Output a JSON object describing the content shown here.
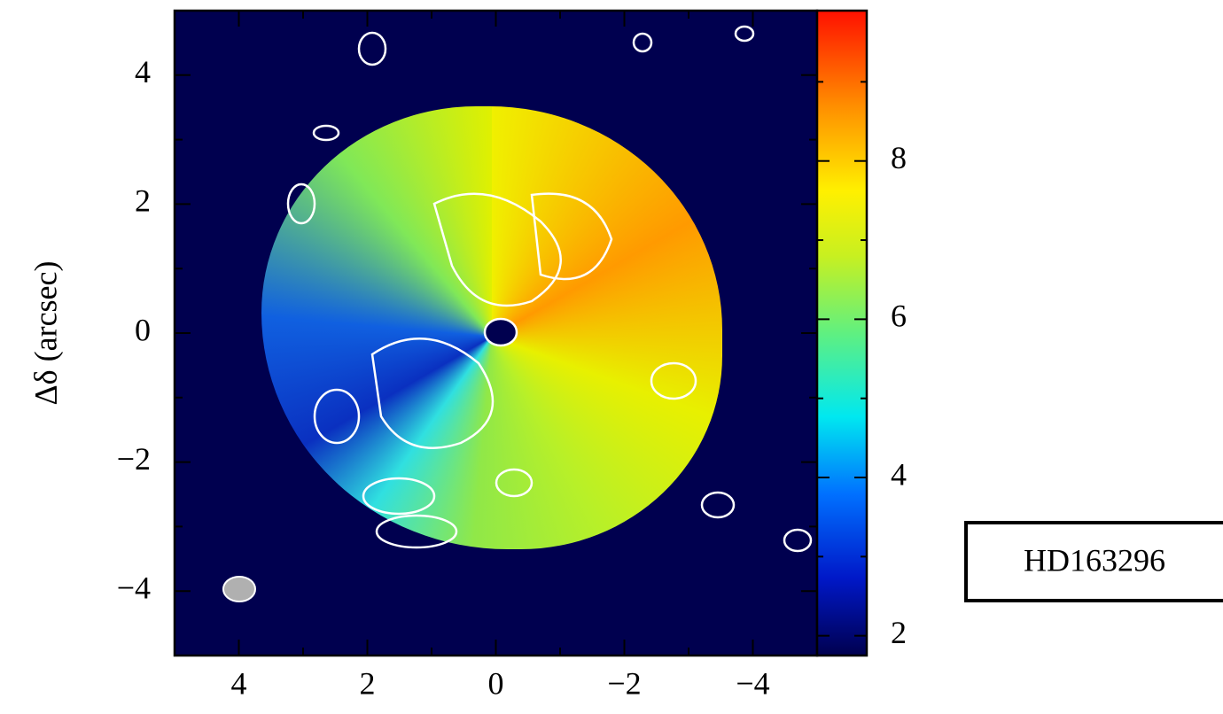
{
  "chart_data": {
    "type": "image",
    "ylabel": "Δδ (arcsec)",
    "label": "HD163296",
    "xlim": [
      5,
      -5
    ],
    "ylim": [
      -5,
      5
    ],
    "xticks": [
      4,
      2,
      0,
      {
        "value": -2,
        "label": "−2"
      },
      {
        "value": -4,
        "label": "−4"
      }
    ],
    "xminorticks": [
      3,
      1,
      -1,
      -3
    ],
    "yticks": [
      {
        "value": -4,
        "label": "−4"
      },
      {
        "value": -2,
        "label": "−2"
      },
      0,
      2,
      4
    ],
    "yminorticks": [
      -3,
      -1,
      1,
      3
    ],
    "colorbar": {
      "lim": [
        1.75,
        9.9
      ],
      "ticks": [
        2,
        4,
        6,
        8
      ],
      "minorticks": [
        3,
        5,
        7,
        9
      ]
    }
  }
}
